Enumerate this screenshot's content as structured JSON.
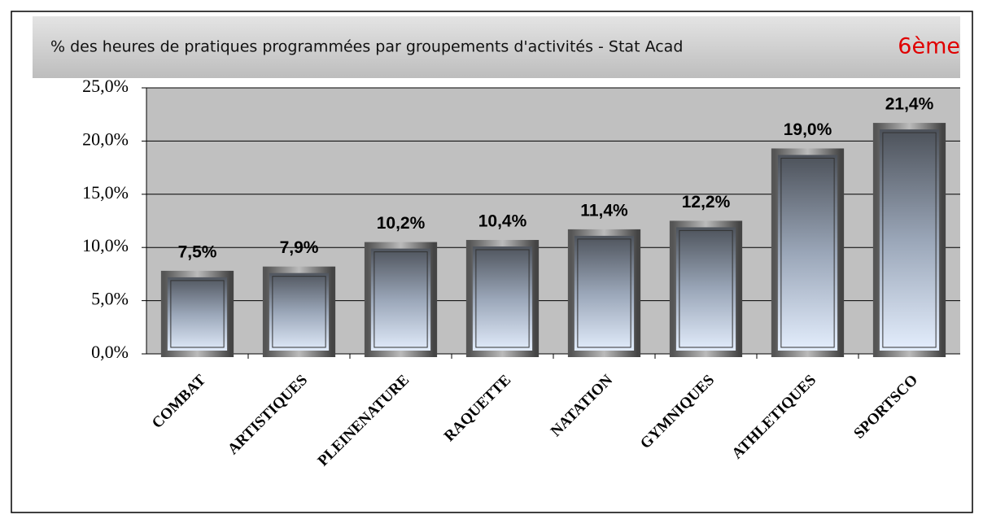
{
  "chart_data": {
    "type": "bar",
    "title": "% des heures de pratiques programmées par groupements d'activités - Stat Acad",
    "subtitle": "6ème",
    "categories": [
      "COMBAT",
      "ARTISTIQUES",
      "PLEINENATURE",
      "RAQUETTE",
      "NATATION",
      "GYMNIQUES",
      "ATHLETIQUES",
      "SPORTSCO"
    ],
    "values": [
      7.5,
      7.9,
      10.2,
      10.4,
      11.4,
      12.2,
      19.0,
      21.4
    ],
    "value_labels": [
      "7,5%",
      "7,9%",
      "10,2%",
      "10,4%",
      "11,4%",
      "12,2%",
      "19,0%",
      "21,4%"
    ],
    "color": "#c8d8f0",
    "ylim": [
      0,
      25
    ],
    "yticks": [
      {
        "value": 0,
        "label": "0,0%"
      },
      {
        "value": 5,
        "label": "5,0%"
      },
      {
        "value": 10,
        "label": "10,0%"
      },
      {
        "value": 15,
        "label": "15,0%"
      },
      {
        "value": 20,
        "label": "20,0%"
      },
      {
        "value": 25,
        "label": "25,0%"
      }
    ],
    "grid": true
  }
}
